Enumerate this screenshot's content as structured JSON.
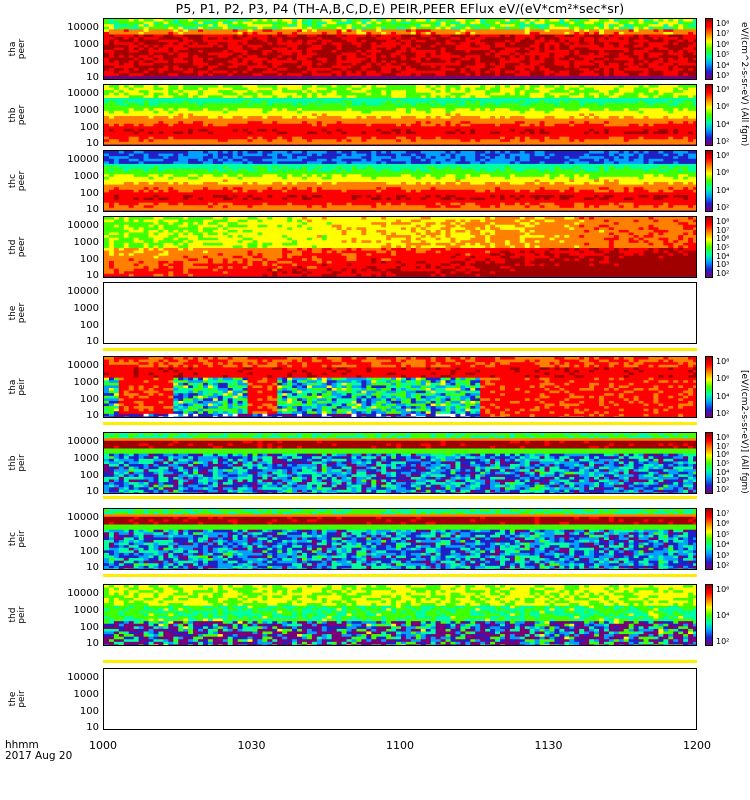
{
  "title": "P5, P1, P2, P3, P4 (TH-A,B,C,D,E) PEIR,PEER EFlux eV/(eV*cm²*sec*sr)",
  "time_axis": {
    "label_line1": "hhmm",
    "label_line2": "2017 Aug 20",
    "ticks": [
      "1000",
      "1030",
      "1100",
      "1130",
      "1200"
    ]
  },
  "y_ticks": [
    "10000",
    "1000",
    "100",
    "10"
  ],
  "colorbar_titles": {
    "peer": "eV/(cm^2-s-sr-eV) (All fgm)",
    "peir": "[eV/(cm2-s-sr-eV)] (All fgm)"
  },
  "panels": [
    {
      "probe": "tha",
      "species": "peer",
      "has_data": true,
      "colorbar_ticks": [
        "10⁸",
        "10⁷",
        "10⁶",
        "10⁵",
        "10⁴",
        "10³"
      ]
    },
    {
      "probe": "thb",
      "species": "peer",
      "has_data": true,
      "colorbar_ticks": [
        "10⁸",
        "10⁶",
        "10⁴",
        "10²"
      ]
    },
    {
      "probe": "thc",
      "species": "peer",
      "has_data": true,
      "colorbar_ticks": [
        "10⁸",
        "10⁶",
        "10⁴",
        "10²"
      ]
    },
    {
      "probe": "thd",
      "species": "peer",
      "has_data": true,
      "colorbar_ticks": [
        "10⁸",
        "10⁷",
        "10⁶",
        "10⁵",
        "10⁴",
        "10³",
        "10²"
      ]
    },
    {
      "probe": "the",
      "species": "peer",
      "has_data": false,
      "colorbar_ticks": []
    },
    {
      "probe": "tha",
      "species": "peir",
      "has_data": true,
      "colorbar_ticks": [
        "10⁸",
        "10⁶",
        "10⁴",
        "10²"
      ]
    },
    {
      "probe": "thb",
      "species": "peir",
      "has_data": true,
      "colorbar_ticks": [
        "10⁸",
        "10⁷",
        "10⁶",
        "10⁵",
        "10⁴",
        "10³",
        "10²"
      ]
    },
    {
      "probe": "thc",
      "species": "peir",
      "has_data": true,
      "colorbar_ticks": [
        "10⁷",
        "10⁶",
        "10⁵",
        "10⁴",
        "10³",
        "10²"
      ]
    },
    {
      "probe": "thd",
      "species": "peir",
      "has_data": true,
      "colorbar_ticks": [
        "10⁶",
        "10⁴",
        "10²"
      ]
    },
    {
      "probe": "the",
      "species": "peir",
      "has_data": false,
      "colorbar_ticks": []
    }
  ],
  "colors": {
    "colormap": [
      "#ffffff",
      "#7a007a",
      "#2020c8",
      "#00a0ff",
      "#00ffa0",
      "#40ff00",
      "#ffff00",
      "#ff8000",
      "#ff0000",
      "#a00000"
    ],
    "highlight_band": "#ffee00"
  },
  "chart_data": [
    {
      "type": "heatmap",
      "title": "tha peer",
      "xlabel": "",
      "ylabel": "tha peer",
      "x_range": [
        "1000",
        "1200"
      ],
      "ylim": [
        5,
        30000
      ],
      "y_scale": "log",
      "colorbar_range": [
        "10³",
        "10⁸"
      ]
    },
    {
      "type": "heatmap",
      "title": "thb peer",
      "xlabel": "",
      "ylabel": "thb peer",
      "x_range": [
        "1000",
        "1200"
      ],
      "ylim": [
        5,
        30000
      ],
      "y_scale": "log",
      "colorbar_range": [
        "10²",
        "10⁸"
      ]
    },
    {
      "type": "heatmap",
      "title": "thc peer",
      "xlabel": "",
      "ylabel": "thc peer",
      "x_range": [
        "1000",
        "1200"
      ],
      "ylim": [
        5,
        30000
      ],
      "y_scale": "log",
      "colorbar_range": [
        "10²",
        "10⁸"
      ]
    },
    {
      "type": "heatmap",
      "title": "thd peer",
      "xlabel": "",
      "ylabel": "thd peer",
      "x_range": [
        "1000",
        "1200"
      ],
      "ylim": [
        5,
        30000
      ],
      "y_scale": "log",
      "colorbar_range": [
        "10²",
        "10⁸"
      ]
    },
    {
      "type": "heatmap",
      "title": "the peer",
      "xlabel": "",
      "ylabel": "the peer",
      "x_range": [
        "1000",
        "1200"
      ],
      "ylim": [
        5,
        30000
      ],
      "y_scale": "log",
      "has_data": false
    },
    {
      "type": "heatmap",
      "title": "tha peir",
      "xlabel": "",
      "ylabel": "tha peir",
      "x_range": [
        "1000",
        "1200"
      ],
      "ylim": [
        5,
        30000
      ],
      "y_scale": "log",
      "colorbar_range": [
        "10²",
        "10⁸"
      ]
    },
    {
      "type": "heatmap",
      "title": "thb peir",
      "xlabel": "",
      "ylabel": "thb peir",
      "x_range": [
        "1000",
        "1200"
      ],
      "ylim": [
        5,
        30000
      ],
      "y_scale": "log",
      "colorbar_range": [
        "10²",
        "10⁸"
      ]
    },
    {
      "type": "heatmap",
      "title": "thc peir",
      "xlabel": "",
      "ylabel": "thc peir",
      "x_range": [
        "1000",
        "1200"
      ],
      "ylim": [
        5,
        30000
      ],
      "y_scale": "log",
      "colorbar_range": [
        "10²",
        "10⁷"
      ]
    },
    {
      "type": "heatmap",
      "title": "thd peir",
      "xlabel": "",
      "ylabel": "thd peir",
      "x_range": [
        "1000",
        "1200"
      ],
      "ylim": [
        5,
        30000
      ],
      "y_scale": "log",
      "colorbar_range": [
        "10²",
        "10⁶"
      ]
    },
    {
      "type": "heatmap",
      "title": "the peir",
      "xlabel": "",
      "ylabel": "the peir",
      "x_range": [
        "1000",
        "1200"
      ],
      "ylim": [
        5,
        30000
      ],
      "y_scale": "log",
      "has_data": false
    }
  ]
}
